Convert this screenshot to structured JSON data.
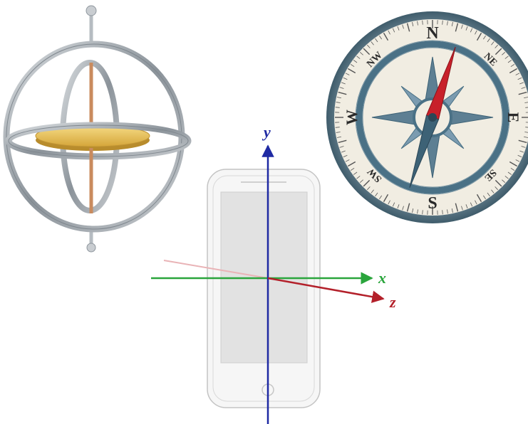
{
  "axes": {
    "x": {
      "label": "x",
      "color": "#2aa53c"
    },
    "y": {
      "label": "y",
      "color": "#1f2aa3"
    },
    "z": {
      "label": "z",
      "color": "#b3202a"
    }
  },
  "compass": {
    "cardinals": {
      "n": "N",
      "e": "E",
      "s": "S",
      "w": "W"
    },
    "intercardinals": {
      "ne": "NE",
      "se": "SE",
      "sw": "SW",
      "nw": "NW"
    },
    "colors": {
      "ring": "#4a7186",
      "face": "#f1ede2",
      "needle_north": "#c8202a",
      "needle_south": "#3d6276"
    }
  },
  "gyroscope": {
    "colors": {
      "ring": "#9aa1a8",
      "rotor": "#e8c25a",
      "axle": "#c98b5e"
    }
  },
  "phone": {
    "colors": {
      "body": "#f4f4f4",
      "screen": "#e3e3e3",
      "outline": "#b8b8b8"
    }
  }
}
